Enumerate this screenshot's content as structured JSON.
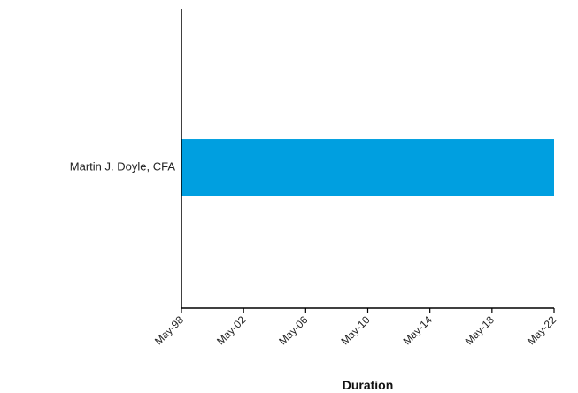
{
  "chart_data": {
    "type": "bar",
    "orientation": "horizontal",
    "title": "",
    "xlabel": "Duration",
    "ylabel": "",
    "categories": [
      "Martin J. Doyle, CFA"
    ],
    "series": [
      {
        "color": "#009fe0",
        "values": [
          {
            "start": "May-98",
            "end": "May-22"
          }
        ]
      }
    ],
    "x_ticks": [
      "May-98",
      "May-02",
      "May-06",
      "May-10",
      "May-14",
      "May-18",
      "May-22"
    ],
    "grid": false,
    "legend": "none"
  }
}
